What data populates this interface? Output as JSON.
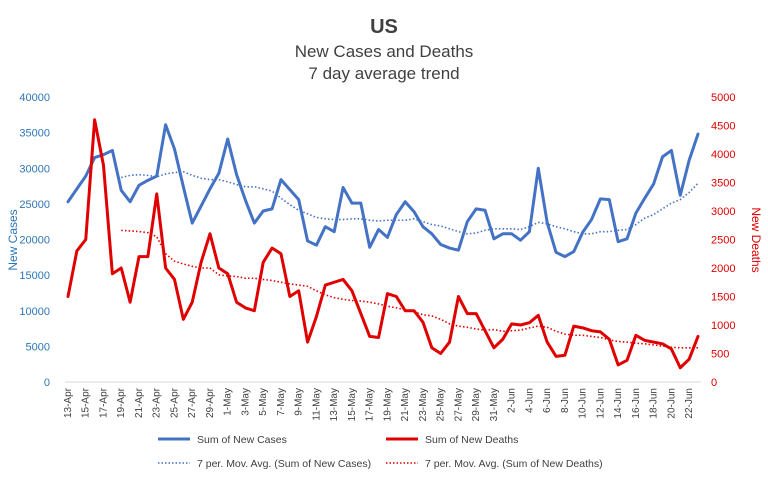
{
  "chart_data": {
    "type": "line",
    "title": "US",
    "subtitle_lines": [
      "New Cases and Deaths",
      "7 day average trend"
    ],
    "ylabel_left": "New Cases",
    "ylabel_right": "New Deaths",
    "ylim_left": [
      0,
      40000
    ],
    "ylim_right": [
      0,
      5000
    ],
    "yticks_left": [
      0,
      5000,
      10000,
      15000,
      20000,
      25000,
      30000,
      35000,
      40000
    ],
    "yticks_right": [
      0,
      500,
      1000,
      1500,
      2000,
      2500,
      3000,
      3500,
      4000,
      4500,
      5000
    ],
    "yticks_left_labels": [
      "0",
      "5000",
      "10000",
      "15000",
      "20000",
      "25000",
      "30000",
      "35000",
      "40000"
    ],
    "yticks_right_labels": [
      "0",
      "500",
      "1000",
      "1500",
      "2000",
      "2500",
      "3000",
      "3500",
      "4000",
      "4500",
      "5000"
    ],
    "grid": false,
    "legend_position": "bottom",
    "x": [
      "13-Apr",
      "14-Apr",
      "15-Apr",
      "16-Apr",
      "17-Apr",
      "18-Apr",
      "19-Apr",
      "20-Apr",
      "21-Apr",
      "22-Apr",
      "23-Apr",
      "24-Apr",
      "25-Apr",
      "26-Apr",
      "27-Apr",
      "28-Apr",
      "29-Apr",
      "30-Apr",
      "1-May",
      "2-May",
      "3-May",
      "4-May",
      "5-May",
      "6-May",
      "7-May",
      "8-May",
      "9-May",
      "10-May",
      "11-May",
      "12-May",
      "13-May",
      "14-May",
      "15-May",
      "16-May",
      "17-May",
      "18-May",
      "19-May",
      "20-May",
      "21-May",
      "22-May",
      "23-May",
      "24-May",
      "25-May",
      "26-May",
      "27-May",
      "28-May",
      "29-May",
      "30-May",
      "31-May",
      "1-Jun",
      "2-Jun",
      "3-Jun",
      "4-Jun",
      "5-Jun",
      "6-Jun",
      "7-Jun",
      "8-Jun",
      "9-Jun",
      "10-Jun",
      "11-Jun",
      "12-Jun",
      "13-Jun",
      "14-Jun",
      "15-Jun",
      "16-Jun",
      "17-Jun",
      "18-Jun",
      "19-Jun",
      "20-Jun",
      "21-Jun",
      "22-Jun",
      "23-Jun"
    ],
    "xtick_labels": [
      "13-Apr",
      "15-Apr",
      "17-Apr",
      "19-Apr",
      "21-Apr",
      "23-Apr",
      "25-Apr",
      "27-Apr",
      "29-Apr",
      "1-May",
      "3-May",
      "5-May",
      "7-May",
      "9-May",
      "11-May",
      "13-May",
      "15-May",
      "17-May",
      "19-May",
      "21-May",
      "23-May",
      "25-May",
      "27-May",
      "29-May",
      "31-May",
      "2-Jun",
      "4-Jun",
      "6-Jun",
      "8-Jun",
      "10-Jun",
      "12-Jun",
      "14-Jun",
      "16-Jun",
      "18-Jun",
      "20-Jun",
      "22-Jun"
    ],
    "series": [
      {
        "name": "Sum of New Cases",
        "axis": "left",
        "style": "solid",
        "color": "#4472C4",
        "values": [
          25300,
          27100,
          28900,
          31500,
          31900,
          32500,
          26900,
          25300,
          27600,
          28300,
          28900,
          36100,
          32700,
          27400,
          22300,
          24700,
          27100,
          29300,
          34100,
          29100,
          25500,
          22300,
          24000,
          24300,
          28400,
          27000,
          25600,
          19800,
          19200,
          21800,
          21100,
          27300,
          25100,
          25100,
          18900,
          21400,
          20300,
          23500,
          25300,
          23900,
          21800,
          20800,
          19300,
          18800,
          18500,
          22500,
          24300,
          24100,
          20100,
          20800,
          20800,
          19900,
          21100,
          30000,
          22400,
          18200,
          17600,
          18300,
          21000,
          22800,
          25700,
          25600,
          19700,
          20100,
          23700,
          25800,
          27800,
          31600,
          32500,
          26200,
          31100,
          34800
        ]
      },
      {
        "name": "Sum of New Deaths",
        "axis": "right",
        "style": "solid",
        "color": "#E00000",
        "values": [
          1500,
          2300,
          2500,
          4600,
          3800,
          1900,
          2000,
          1400,
          2200,
          2200,
          3300,
          2000,
          1800,
          1100,
          1400,
          2100,
          2600,
          2000,
          1900,
          1400,
          1300,
          1250,
          2100,
          2350,
          2250,
          1500,
          1600,
          700,
          1150,
          1700,
          1750,
          1800,
          1600,
          1200,
          800,
          780,
          1550,
          1500,
          1250,
          1250,
          1050,
          600,
          500,
          700,
          1500,
          1200,
          1200,
          900,
          600,
          750,
          1020,
          1000,
          1040,
          1170,
          700,
          450,
          470,
          980,
          950,
          900,
          880,
          750,
          300,
          380,
          820,
          730,
          700,
          670,
          580,
          250,
          400,
          800
        ]
      },
      {
        "name": "7 per. Mov. Avg. (Sum of New Cases)",
        "axis": "left",
        "style": "dotted",
        "color": "#4472C4",
        "values": [
          null,
          null,
          null,
          null,
          null,
          null,
          28700,
          29000,
          29100,
          29000,
          28800,
          29200,
          29400,
          29500,
          29000,
          28600,
          28400,
          28400,
          28100,
          27700,
          27400,
          27400,
          27100,
          26800,
          25800,
          24900,
          24100,
          23600,
          23100,
          22900,
          22800,
          22800,
          22900,
          22900,
          22700,
          22600,
          22700,
          22700,
          22700,
          22900,
          22500,
          22100,
          21900,
          21500,
          21100,
          20800,
          20900,
          21300,
          21500,
          21500,
          21500,
          21400,
          21800,
          22400,
          22200,
          21800,
          21500,
          21100,
          20800,
          20800,
          21100,
          21100,
          21300,
          21400,
          22100,
          23000,
          23500,
          24300,
          25100,
          25600,
          26600,
          27900
        ]
      },
      {
        "name": "7 per. Mov. Avg. (Sum of New Deaths)",
        "axis": "right",
        "style": "dotted",
        "color": "#E00000",
        "values": [
          null,
          null,
          null,
          null,
          null,
          null,
          2660,
          2650,
          2640,
          2620,
          2550,
          2250,
          2120,
          2070,
          2030,
          2000,
          2000,
          1880,
          1860,
          1850,
          1820,
          1820,
          1800,
          1780,
          1750,
          1720,
          1700,
          1680,
          1600,
          1530,
          1480,
          1450,
          1430,
          1420,
          1400,
          1370,
          1330,
          1300,
          1270,
          1230,
          1180,
          1160,
          1100,
          1020,
          980,
          960,
          930,
          910,
          920,
          890,
          900,
          910,
          950,
          980,
          960,
          890,
          840,
          820,
          820,
          800,
          780,
          740,
          710,
          700,
          680,
          670,
          650,
          630,
          610,
          600,
          600,
          600
        ]
      }
    ]
  }
}
